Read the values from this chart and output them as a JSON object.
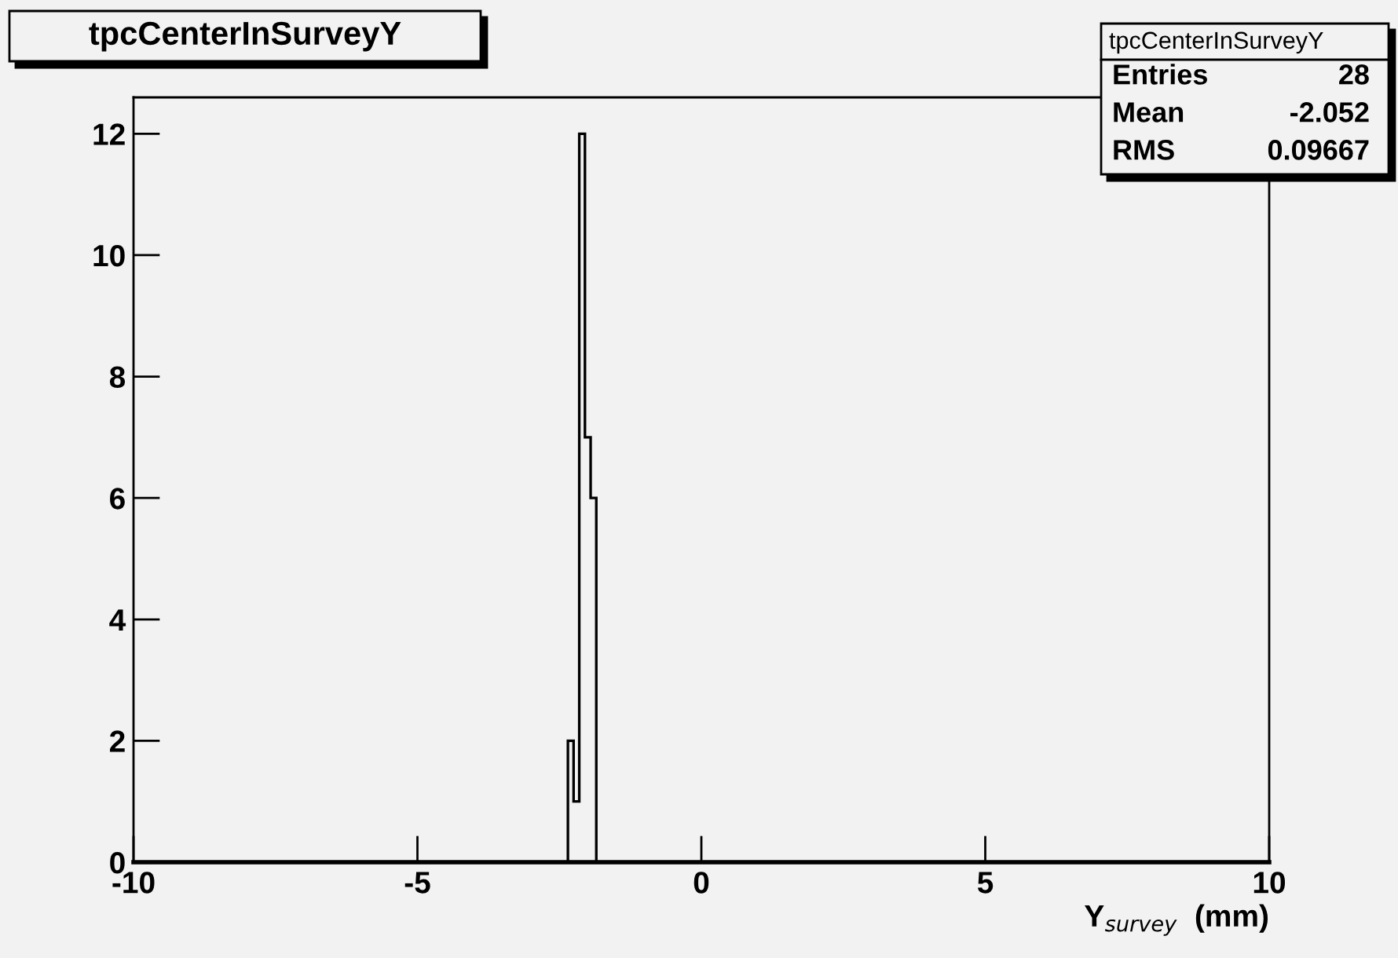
{
  "chart_data": {
    "type": "histogram",
    "title": "tpcCenterInSurveyY",
    "xlabel": "Y$_{survey}$  (mm)",
    "bins": [
      -2.35,
      -2.25,
      -2.15,
      -2.05,
      -1.95,
      -1.85
    ],
    "values": [
      2,
      1,
      12,
      7,
      6
    ],
    "color": "#000000",
    "xlim": [
      -10,
      10
    ],
    "xticks": [
      -10,
      -5,
      0,
      5,
      10
    ],
    "ylim": [
      0,
      12.6
    ],
    "yticks": [
      0,
      2,
      4,
      6,
      8,
      10,
      12
    ],
    "grid": false,
    "legend": false,
    "annotations": [
      "tpcCenterInSurveyY",
      "Entries",
      "28",
      "Mean",
      "-2.052",
      "RMS",
      "0.09667"
    ]
  }
}
